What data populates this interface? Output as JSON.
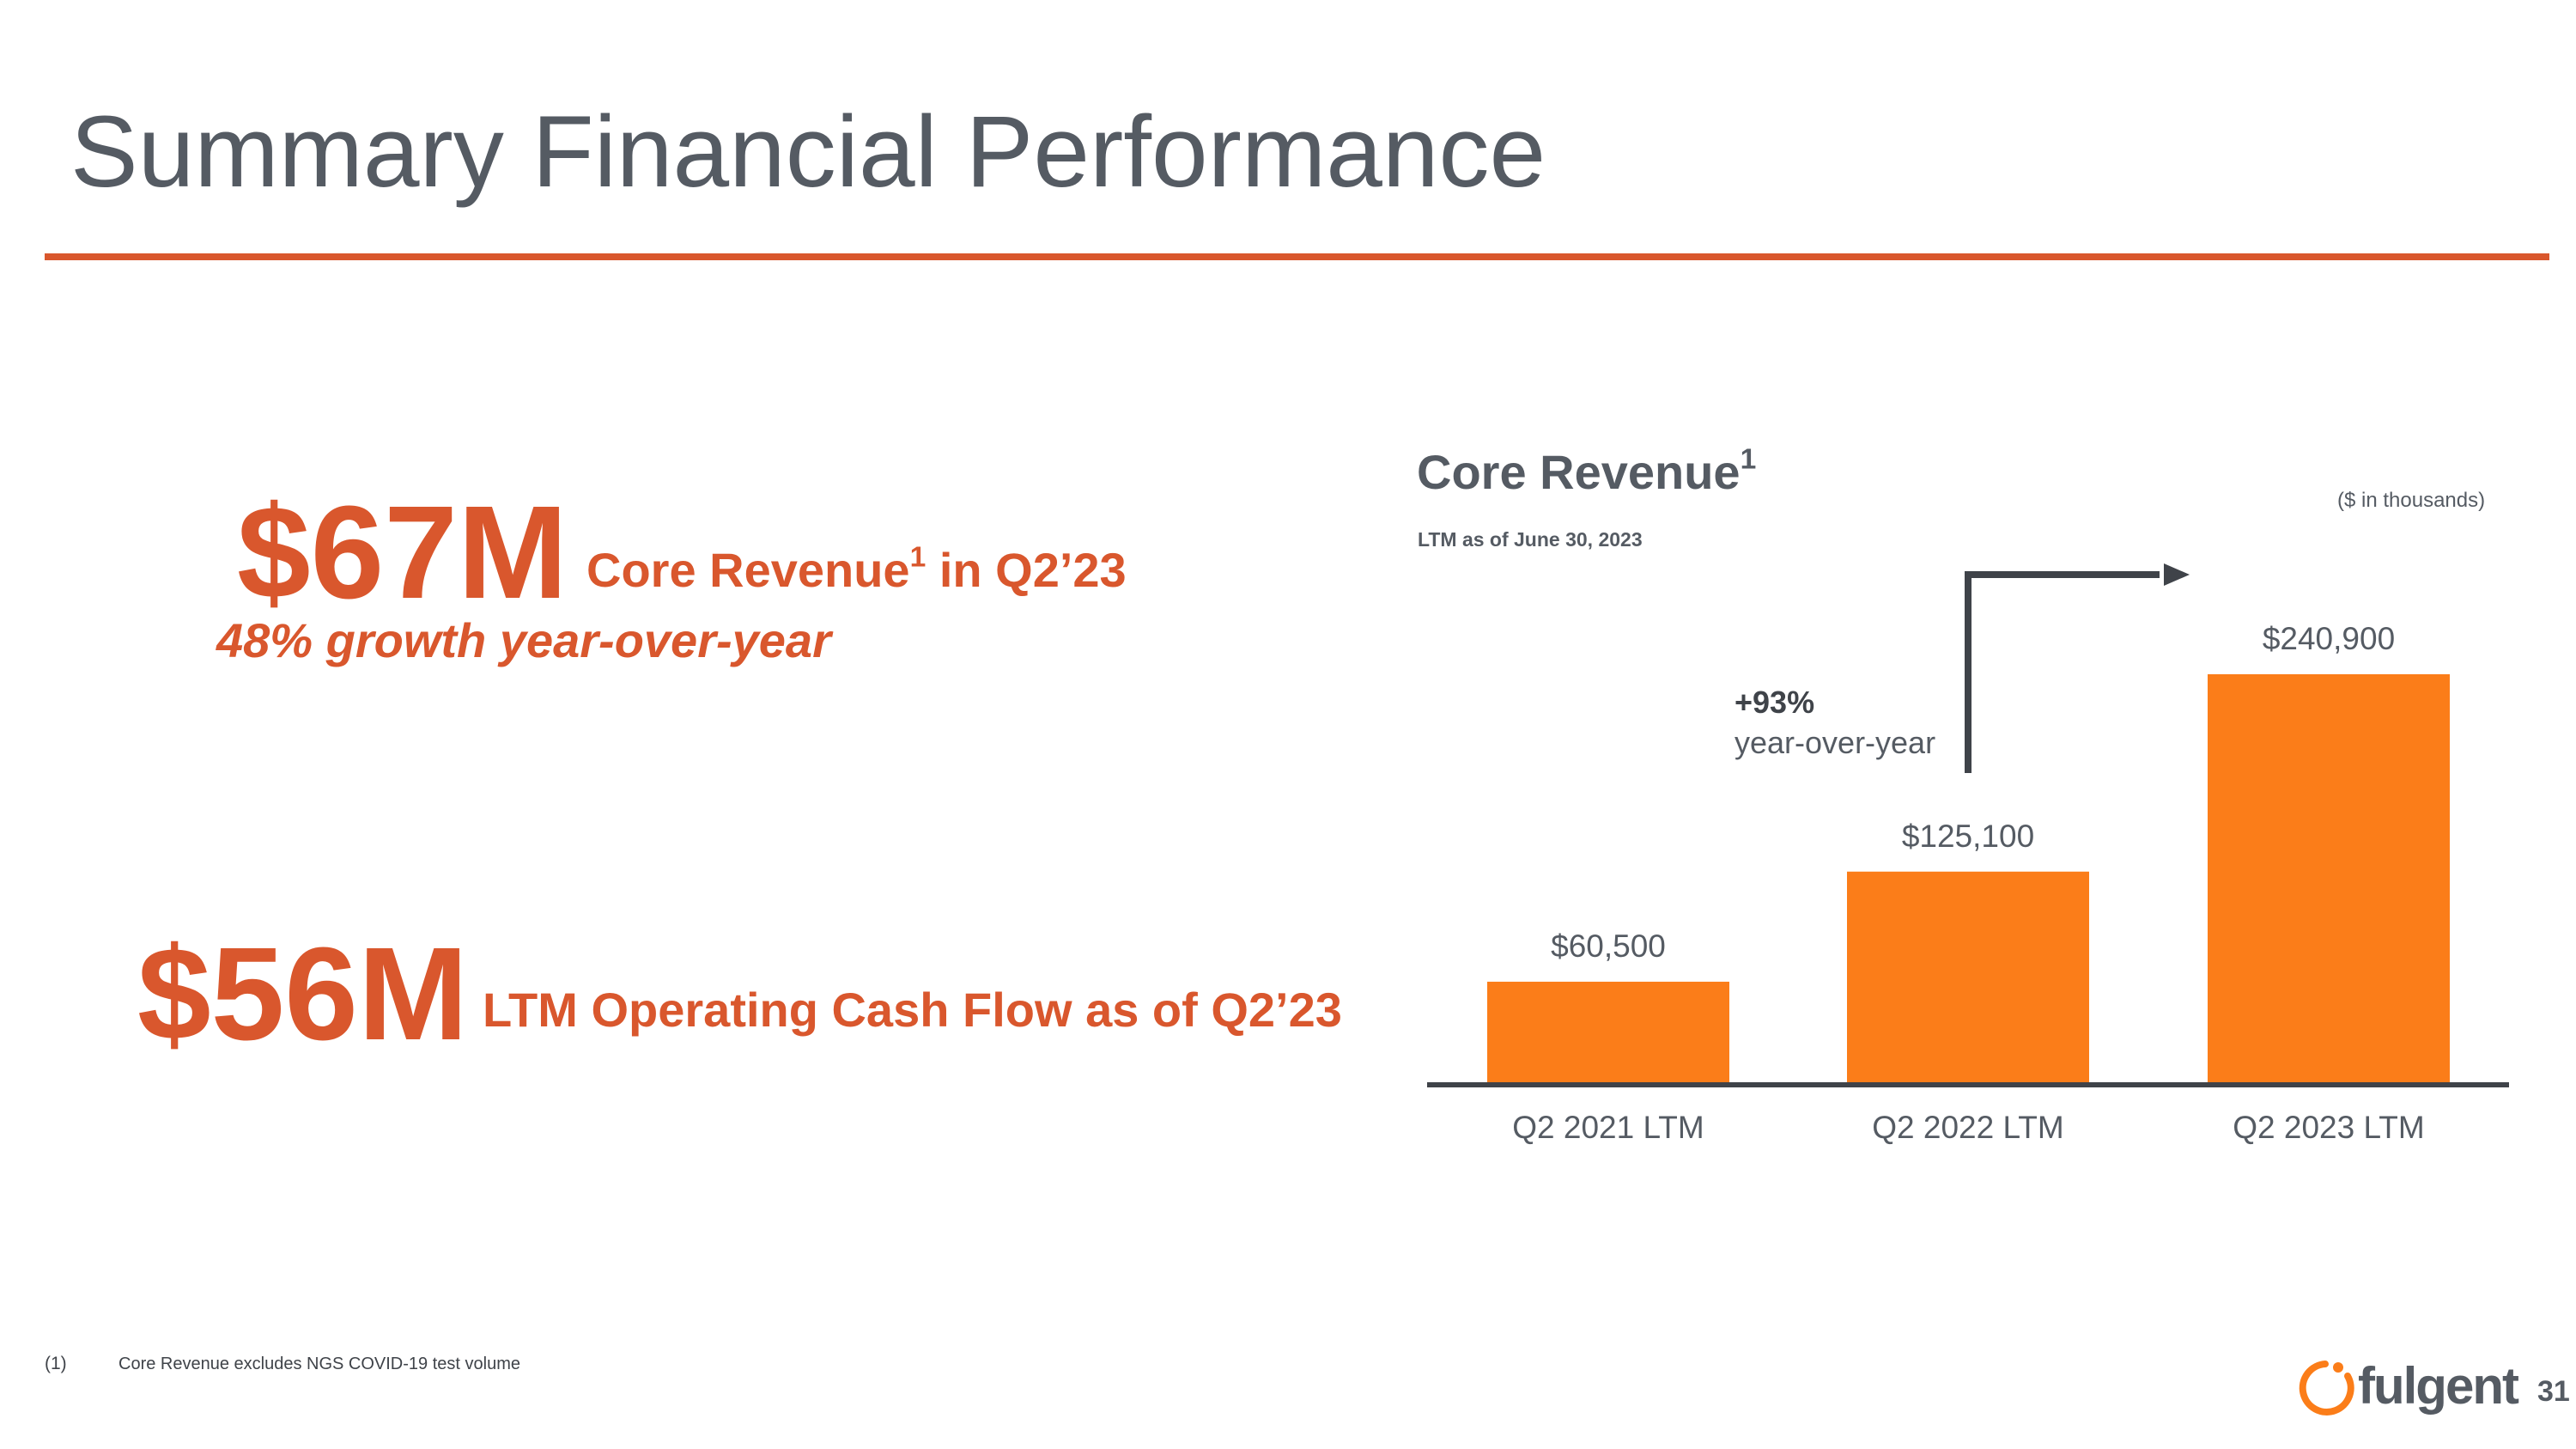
{
  "slide": {
    "title": "Summary Financial Performance",
    "page_number": "31"
  },
  "colors": {
    "accent": "#d9572d",
    "bar": "#fb7d19",
    "text_gray": "#555b63",
    "axis": "#3f4349"
  },
  "stats": [
    {
      "value": "$67M",
      "label_prefix": "Core Revenue",
      "label_sup": "1",
      "label_suffix": " in Q2’23",
      "growth": "48% growth year-over-year"
    },
    {
      "value": "$56M",
      "label": "LTM Operating Cash Flow as of Q2’23"
    }
  ],
  "chart_data": {
    "type": "bar",
    "title": "Core Revenue",
    "title_sup": "1",
    "subtitle": "LTM as of June 30, 2023",
    "unit_note": "($ in thousands)",
    "categories": [
      "Q2 2021 LTM",
      "Q2 2022 LTM",
      "Q2 2023 LTM"
    ],
    "values": [
      60500,
      125100,
      240900
    ],
    "value_labels": [
      "$60,500",
      "$125,100",
      "$240,900"
    ],
    "annotation": {
      "growth": "+93%",
      "text": "year-over-year",
      "icon": "elbow-arrow-icon"
    },
    "grid": false,
    "legend": "none"
  },
  "footnote": {
    "number": "(1)",
    "text": "Core Revenue excludes NGS COVID-19 test volume"
  },
  "logo": {
    "text": "fulgent",
    "icon": "fulgent-logo-icon"
  }
}
